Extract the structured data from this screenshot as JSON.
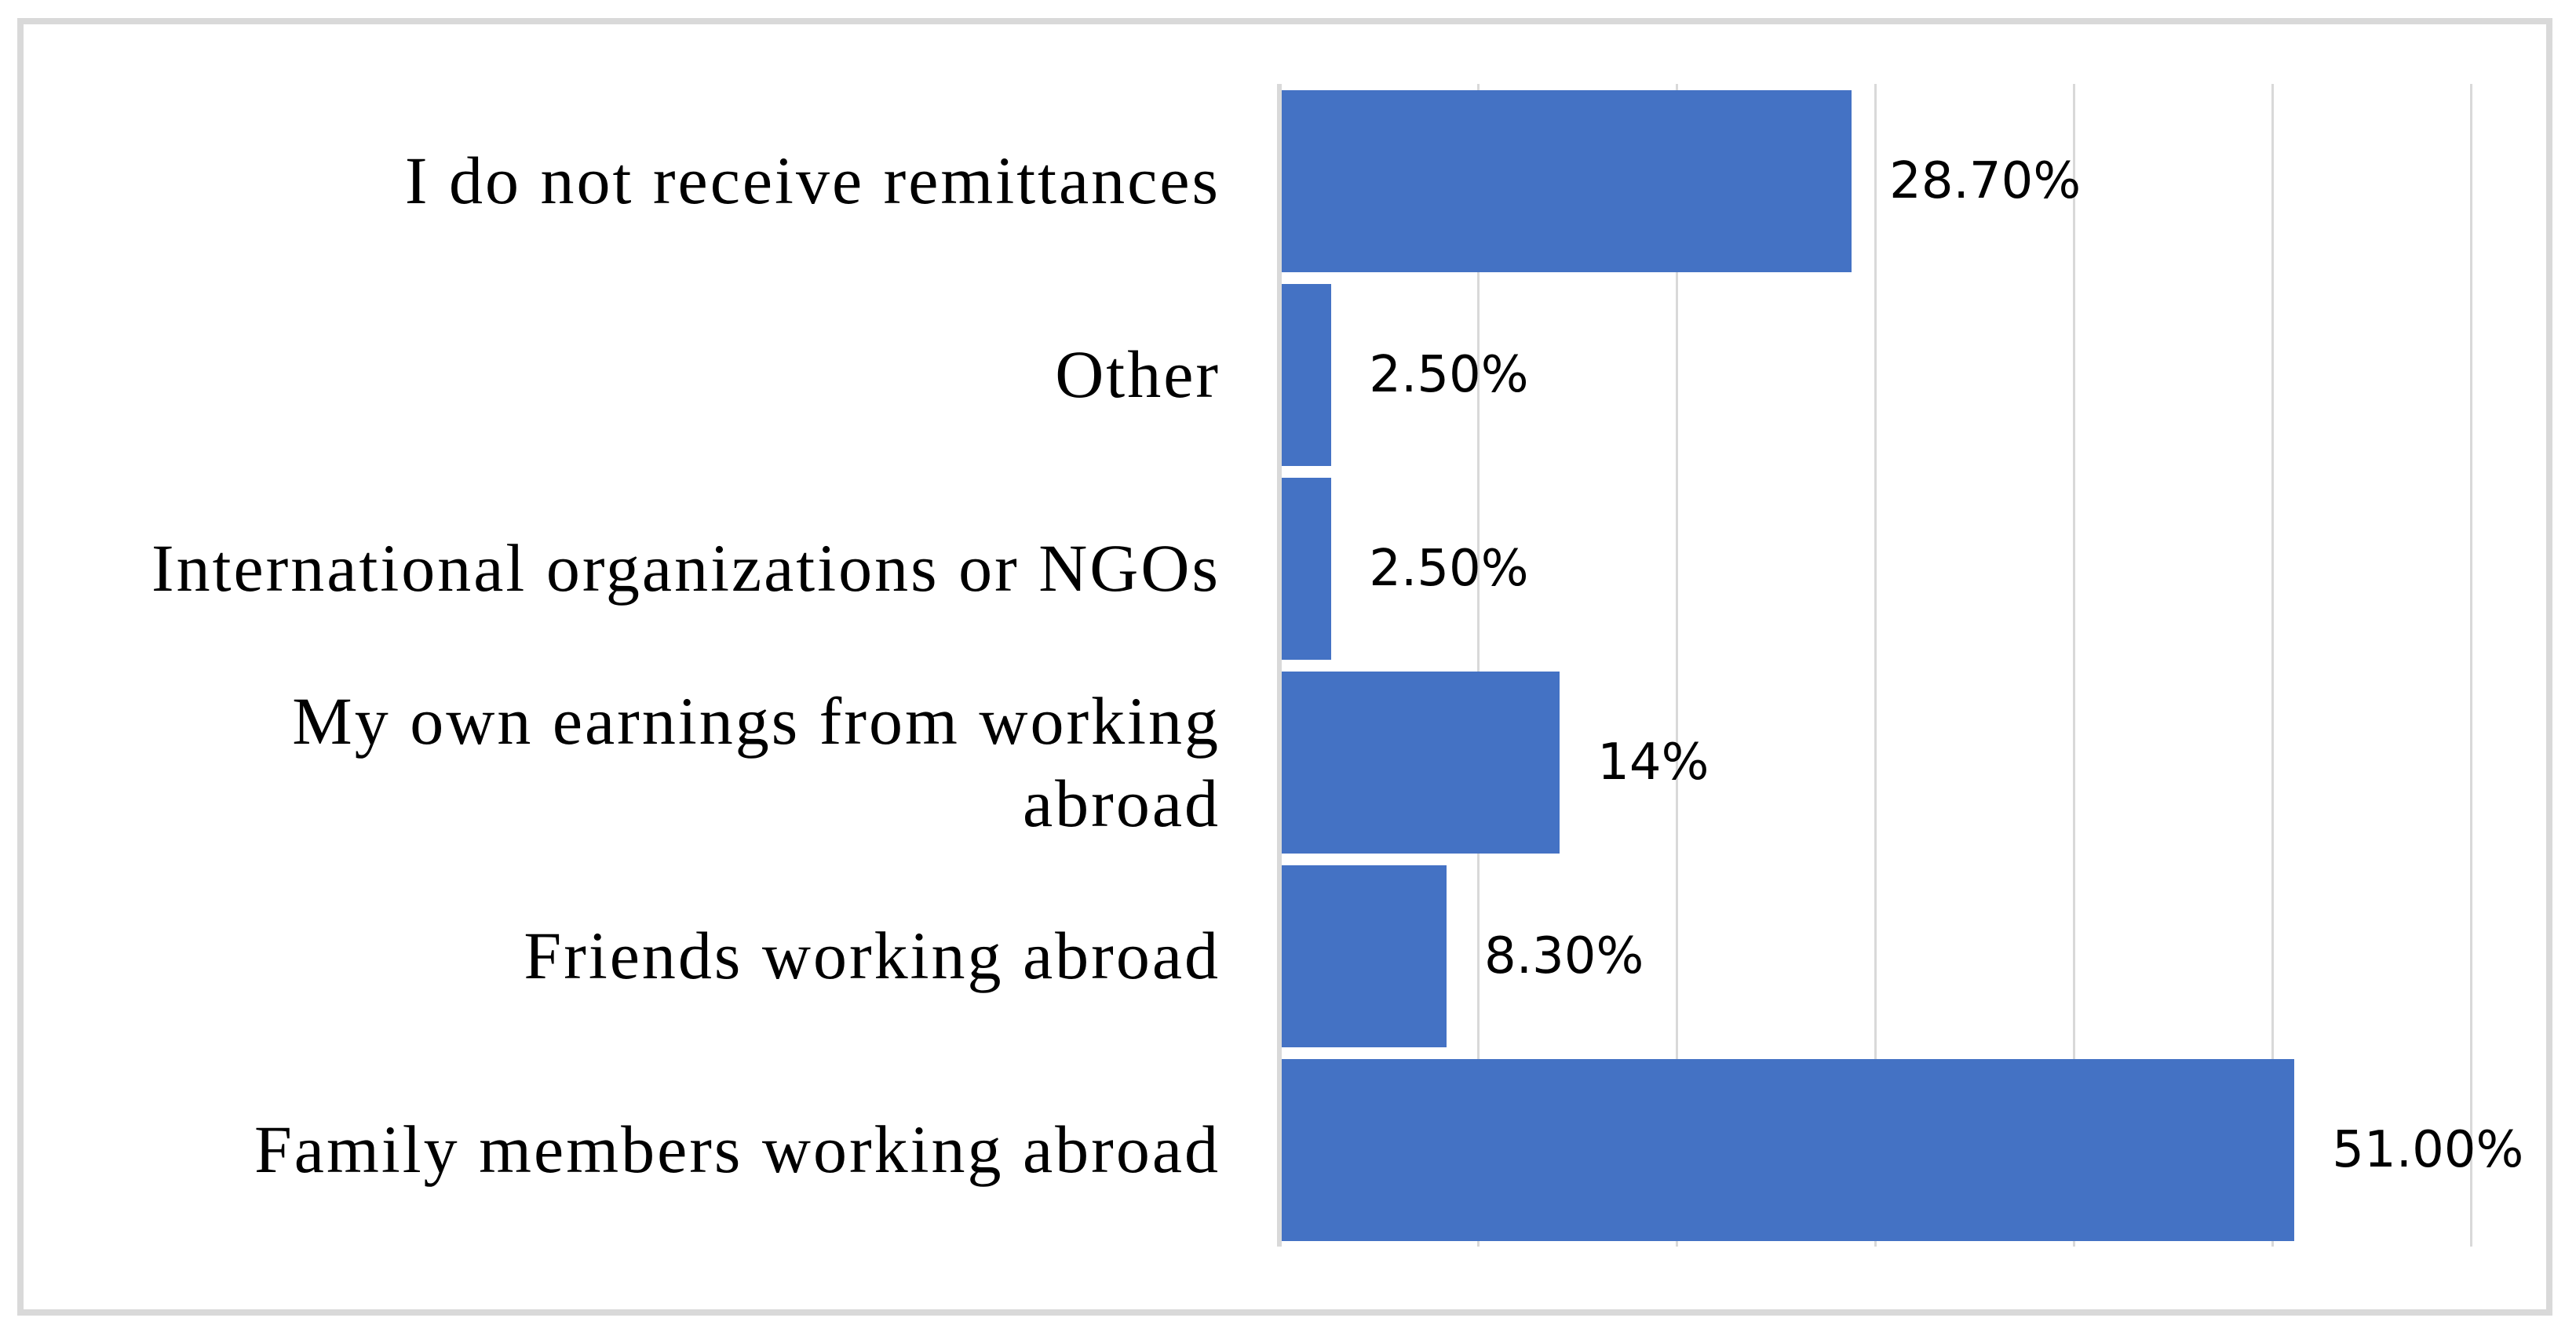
{
  "chart_data": {
    "type": "bar",
    "orientation": "horizontal",
    "title": "",
    "xlabel": "",
    "ylabel": "",
    "categories_top_to_bottom": [
      "I do not receive remittances",
      "Other",
      "International organizations or NGOs",
      "My own earnings from working\nabroad",
      "Friends working abroad",
      "Family members working abroad"
    ],
    "values_top_to_bottom": [
      28.7,
      2.5,
      2.5,
      14,
      8.3,
      51
    ],
    "data_labels_top_to_bottom": [
      "28.70%",
      "2.50%",
      "2.50%",
      "14%",
      "8.30%",
      "51.00%"
    ],
    "xlim": [
      0,
      60
    ],
    "gridline_interval_percent": 10,
    "grid": true,
    "legend": "none",
    "colors": {
      "bar": "#4472C4",
      "gridline": "#D9D9D9",
      "axis_line": "#D9D9D9",
      "figure_border": "#D9D9D9",
      "text": "#000000",
      "background": "#FFFFFF"
    }
  }
}
